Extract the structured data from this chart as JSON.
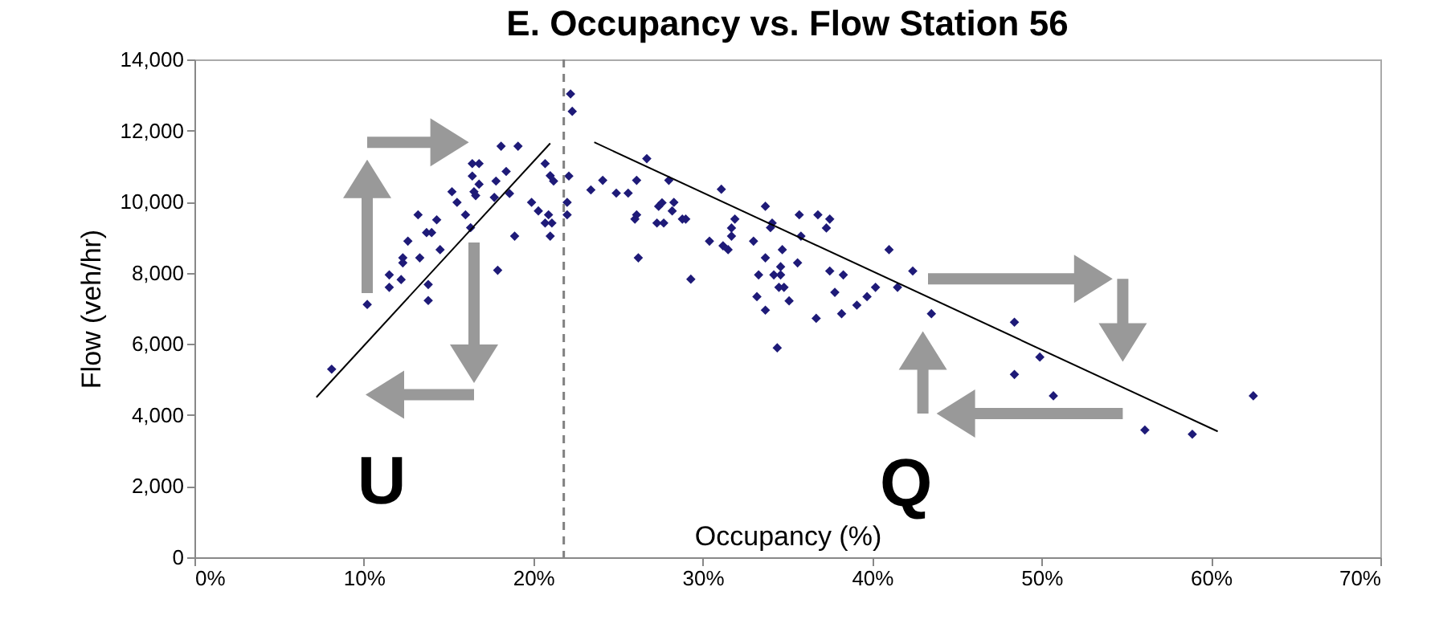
{
  "chart_data": {
    "type": "scatter",
    "title": "E. Occupancy vs. Flow Station 56",
    "xlabel": "Occupancy (%)",
    "ylabel": "Flow (veh/hr)",
    "marker": "diamond",
    "grid": false,
    "xlim": [
      0,
      70
    ],
    "xticks": [
      {
        "value": 0,
        "label": "0%"
      },
      {
        "value": 10,
        "label": "10%"
      },
      {
        "value": 20,
        "label": "20%"
      },
      {
        "value": 30,
        "label": "30%"
      },
      {
        "value": 40,
        "label": "40%"
      },
      {
        "value": 50,
        "label": "50%"
      },
      {
        "value": 60,
        "label": "60%"
      },
      {
        "value": 70,
        "label": "70%"
      }
    ],
    "ylim": [
      0,
      14000
    ],
    "yticks": [
      0,
      {
        "value": 2000,
        "label": "2,000"
      },
      {
        "value": 4000,
        "label": "4,000"
      },
      {
        "value": 6000,
        "label": "6,000"
      },
      {
        "value": 8000,
        "label": "8,000"
      },
      {
        "value": 10000,
        "label": "10,000"
      },
      {
        "value": 12000,
        "label": "12,000"
      },
      {
        "value": 14000,
        "label": "14,000"
      }
    ],
    "series": [
      {
        "color": "#1e1a78",
        "x": [
          8.1,
          10.2,
          11.5,
          11.5,
          12.2,
          12.3,
          12.3,
          13.3,
          12.6,
          13.2,
          13.8,
          13.8,
          13.7,
          14.0,
          14.3,
          14.5,
          15.2,
          15.5,
          16.0,
          16.3,
          16.4,
          16.8,
          16.4,
          16.5,
          16.6,
          16.8,
          17.7,
          17.8,
          18.4,
          18.6,
          17.9,
          18.1,
          19.1,
          18.9,
          19.9,
          20.3,
          20.7,
          20.9,
          21.0,
          21.2,
          20.7,
          21.1,
          21.0,
          22.0,
          22.1,
          22.0,
          22.2,
          22.3,
          23.4,
          24.1,
          26.7,
          26.1,
          24.9,
          25.6,
          26.1,
          26.0,
          26.2,
          27.4,
          27.6,
          28.3,
          28.2,
          27.3,
          27.7,
          28.8,
          29.0,
          28.0,
          29.3,
          31.1,
          30.4,
          31.2,
          31.5,
          31.7,
          31.7,
          31.9,
          33.0,
          33.7,
          34.1,
          34.0,
          34.7,
          33.7,
          34.6,
          33.3,
          34.2,
          34.6,
          34.5,
          34.8,
          33.2,
          35.1,
          33.7,
          34.4,
          35.6,
          35.8,
          35.7,
          36.8,
          37.5,
          37.3,
          36.7,
          37.5,
          38.3,
          37.8,
          38.2,
          39.1,
          39.7,
          40.2,
          41.5,
          41.0,
          42.4,
          43.5,
          48.4,
          49.9,
          48.4,
          50.7,
          56.1,
          58.9,
          62.5
        ],
        "values": [
          5290,
          7110,
          7940,
          7590,
          7810,
          8420,
          8280,
          8420,
          8890,
          9630,
          7670,
          7220,
          9130,
          9130,
          9490,
          8650,
          10280,
          9980,
          9630,
          9270,
          11070,
          11070,
          10720,
          10280,
          10170,
          10490,
          10120,
          10580,
          10850,
          10230,
          8070,
          11560,
          11560,
          9030,
          9980,
          9740,
          11070,
          9630,
          10730,
          10580,
          9400,
          9400,
          9030,
          9980,
          10720,
          9630,
          13030,
          12540,
          10330,
          10600,
          11210,
          10600,
          10240,
          10240,
          9630,
          9510,
          8420,
          9870,
          9970,
          9980,
          9740,
          9400,
          9400,
          9510,
          9510,
          10600,
          7820,
          10350,
          8890,
          8760,
          8650,
          9260,
          9030,
          9510,
          8890,
          9870,
          9400,
          9270,
          8650,
          8420,
          8170,
          7940,
          7940,
          7940,
          7590,
          7590,
          7330,
          7210,
          6950,
          5890,
          8280,
          9030,
          9630,
          9630,
          9510,
          9260,
          6720,
          8050,
          7940,
          7450,
          6850,
          7090,
          7330,
          7590,
          7590,
          8650,
          8050,
          6850,
          6610,
          5630,
          5140,
          4540,
          3580,
          3460,
          4540
        ]
      },
      {
        "type": "line",
        "marker": "none",
        "color": "#000000",
        "x": [
          7.2,
          21.0
        ],
        "values": [
          4500,
          11640
        ]
      },
      {
        "type": "line",
        "marker": "none",
        "color": "#000000",
        "x": [
          23.6,
          60.4
        ],
        "values": [
          11670,
          3540
        ]
      }
    ],
    "ref_lines": [
      {
        "axis": "x",
        "value": 21.8,
        "color": "#808080",
        "line_style": "dashed"
      }
    ],
    "annotations": [
      "U",
      "Q"
    ]
  }
}
